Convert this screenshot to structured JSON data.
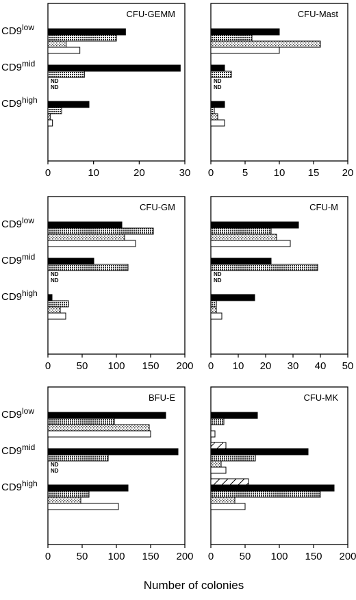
{
  "xlabel": "Number of colonies",
  "chart_data": [
    {
      "type": "hbar",
      "title": "CFU-GEMM",
      "category_prefix": "CD9",
      "categories": [
        "low",
        "mid",
        "high"
      ],
      "xlim": [
        0,
        30
      ],
      "xticks": [
        0,
        10,
        20,
        30
      ],
      "series": [
        {
          "pattern": "solid",
          "values": [
            17,
            29,
            9
          ]
        },
        {
          "pattern": "dense",
          "values": [
            15,
            8,
            3
          ]
        },
        {
          "pattern": "light",
          "values": [
            4,
            null,
            0.5
          ],
          "value_labels": [
            null,
            "ND",
            null
          ]
        },
        {
          "pattern": "white",
          "values": [
            7,
            null,
            1
          ],
          "value_labels": [
            null,
            "ND",
            null
          ]
        }
      ]
    },
    {
      "type": "hbar",
      "title": "CFU-Mast",
      "xlim": [
        0,
        20
      ],
      "xticks": [
        0,
        5,
        10,
        15,
        20
      ],
      "series": [
        {
          "pattern": "solid",
          "values": [
            10,
            2,
            2
          ]
        },
        {
          "pattern": "dense",
          "values": [
            6,
            3,
            0.5
          ]
        },
        {
          "pattern": "light",
          "values": [
            16,
            null,
            1
          ],
          "value_labels": [
            null,
            "ND",
            null
          ]
        },
        {
          "pattern": "white",
          "values": [
            10,
            null,
            2
          ],
          "value_labels": [
            null,
            "ND",
            null
          ]
        }
      ]
    },
    {
      "type": "hbar",
      "title": "CFU-GM",
      "category_prefix": "CD9",
      "categories": [
        "low",
        "mid",
        "high"
      ],
      "xlim": [
        0,
        200
      ],
      "xticks": [
        0,
        50,
        100,
        150,
        200
      ],
      "series": [
        {
          "pattern": "solid",
          "values": [
            108,
            67,
            6
          ]
        },
        {
          "pattern": "dense",
          "values": [
            154,
            117,
            30
          ]
        },
        {
          "pattern": "light",
          "values": [
            112,
            null,
            18
          ],
          "value_labels": [
            null,
            "ND",
            null
          ]
        },
        {
          "pattern": "white",
          "values": [
            128,
            null,
            26
          ],
          "value_labels": [
            null,
            "ND",
            null
          ]
        }
      ]
    },
    {
      "type": "hbar",
      "title": "CFU-M",
      "xlim": [
        0,
        50
      ],
      "xticks": [
        0,
        10,
        20,
        30,
        40,
        50
      ],
      "series": [
        {
          "pattern": "solid",
          "values": [
            32,
            22,
            16
          ]
        },
        {
          "pattern": "dense",
          "values": [
            22,
            39,
            2
          ]
        },
        {
          "pattern": "light",
          "values": [
            24,
            null,
            2
          ],
          "value_labels": [
            null,
            "ND",
            null
          ]
        },
        {
          "pattern": "white",
          "values": [
            29,
            null,
            4
          ],
          "value_labels": [
            null,
            "ND",
            null
          ]
        }
      ]
    },
    {
      "type": "hbar",
      "title": "BFU-E",
      "category_prefix": "CD9",
      "categories": [
        "low",
        "mid",
        "high"
      ],
      "xlim": [
        0,
        200
      ],
      "xticks": [
        0,
        50,
        100,
        150,
        200
      ],
      "series": [
        {
          "pattern": "solid",
          "values": [
            172,
            190,
            117
          ]
        },
        {
          "pattern": "dense",
          "values": [
            97,
            88,
            60
          ]
        },
        {
          "pattern": "light",
          "values": [
            148,
            null,
            48
          ],
          "value_labels": [
            null,
            "ND",
            null
          ]
        },
        {
          "pattern": "white",
          "values": [
            150,
            null,
            103
          ],
          "value_labels": [
            null,
            "ND",
            null
          ]
        }
      ]
    },
    {
      "type": "hbar",
      "title": "CFU-MK",
      "xlim": [
        0,
        200
      ],
      "xticks": [
        0,
        50,
        100,
        150,
        200
      ],
      "series": [
        {
          "pattern": "hatch",
          "values": [
            null,
            22,
            55
          ]
        },
        {
          "pattern": "solid",
          "values": [
            68,
            142,
            180
          ]
        },
        {
          "pattern": "dense",
          "values": [
            19,
            65,
            160
          ]
        },
        {
          "pattern": "light",
          "values": [
            null,
            15,
            35
          ]
        },
        {
          "pattern": "white",
          "values": [
            6,
            22,
            50
          ]
        }
      ]
    }
  ]
}
